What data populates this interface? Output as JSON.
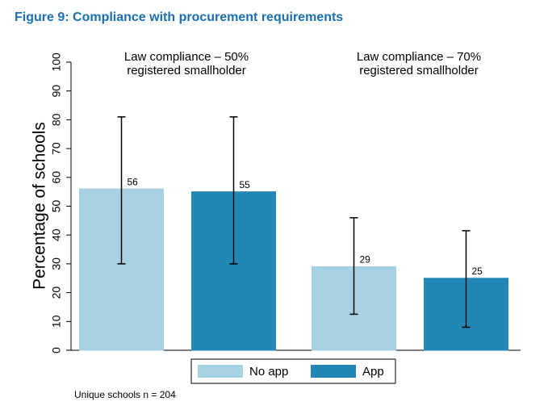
{
  "chart_data": {
    "type": "bar",
    "title": "Figure 9: Compliance with procurement requirements",
    "y_label": "Percentage of schools",
    "categories": [
      [
        "Law compliance – 50%",
        "registered smallholder"
      ],
      [
        "Law compliance – 70%",
        "registered smallholder"
      ]
    ],
    "series": [
      {
        "name": "No app",
        "color": "#a6d1e2",
        "values": [
          56,
          29
        ],
        "ci_low": [
          30,
          12.5
        ],
        "ci_high": [
          81,
          46
        ]
      },
      {
        "name": "App",
        "color": "#2287b6",
        "values": [
          55,
          25
        ],
        "ci_low": [
          30,
          8
        ],
        "ci_high": [
          81,
          41.5
        ]
      }
    ],
    "ylim": [
      0,
      100
    ],
    "yticks": [
      0,
      10,
      20,
      30,
      40,
      50,
      60,
      70,
      80,
      90,
      100
    ],
    "grid": false,
    "legend": "bottom",
    "note": "Unique schools n = 204"
  }
}
